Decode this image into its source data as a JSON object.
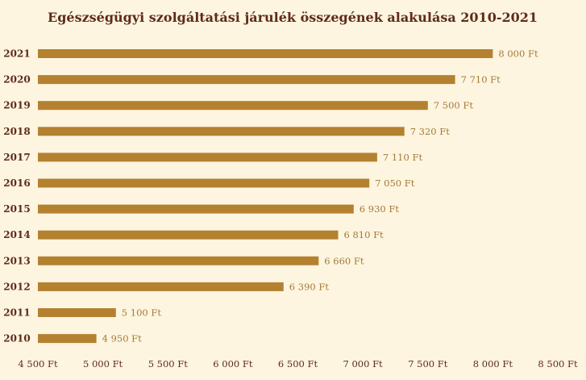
{
  "colors": {
    "background": "#fdf5e0",
    "bar": "#b48131",
    "text": "#5e2b1c",
    "data_label": "#a47a35"
  },
  "chart_data": {
    "type": "bar",
    "orientation": "horizontal",
    "title": "Egészségügyi szolgáltatási járulék összegének alakulása 2010-2021",
    "xlabel": "",
    "ylabel": "",
    "xlim": [
      4500,
      8500
    ],
    "grid": false,
    "legend": "none",
    "categories": [
      "2021",
      "2020",
      "2019",
      "2018",
      "2017",
      "2016",
      "2015",
      "2014",
      "2013",
      "2012",
      "2011",
      "2010"
    ],
    "values": [
      8000,
      7710,
      7500,
      7320,
      7110,
      7050,
      6930,
      6810,
      6660,
      6390,
      5100,
      4950
    ],
    "data_labels": [
      "8 000 Ft",
      "7 710 Ft",
      "7 500 Ft",
      "7 320 Ft",
      "7 110 Ft",
      "7 050 Ft",
      "6 930 Ft",
      "6 810 Ft",
      "6 660 Ft",
      "6 390 Ft",
      "5 100 Ft",
      "4 950 Ft"
    ],
    "x_ticks": [
      4500,
      5000,
      5500,
      6000,
      6500,
      7000,
      7500,
      8000,
      8500
    ],
    "x_tick_labels": [
      "4 500 Ft",
      "5 000 Ft",
      "5 500 Ft",
      "6 000 Ft",
      "6 500 Ft",
      "7 000 Ft",
      "7 500 Ft",
      "8 000 Ft",
      "8 500 Ft"
    ]
  }
}
